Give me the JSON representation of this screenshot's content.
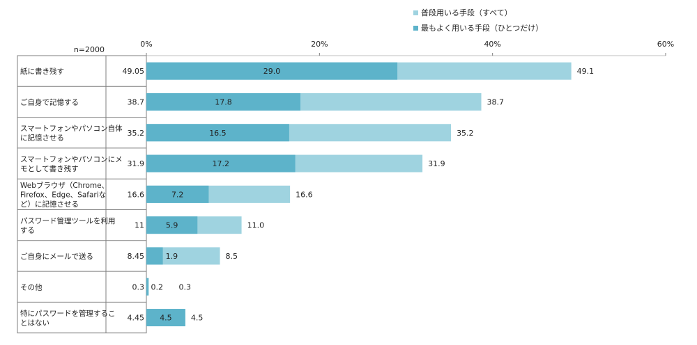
{
  "chart_data": {
    "type": "bar",
    "orientation": "horizontal",
    "sample_label": "n=2000",
    "xlim": [
      0,
      60
    ],
    "xticks": [
      "0%",
      "20%",
      "40%",
      "60%"
    ],
    "grid": true,
    "legend_position": "top-right",
    "colors": {
      "all": "#9fd3e0",
      "most": "#5db3ca"
    },
    "series": [
      {
        "name": "普段用いる手段（すべて）",
        "values": [
          49.1,
          38.7,
          35.2,
          31.9,
          16.6,
          11.0,
          8.5,
          0.3,
          4.5
        ]
      },
      {
        "name": "最もよく用いる手段（ひとつだけ）",
        "values": [
          29.0,
          17.8,
          16.5,
          17.2,
          7.2,
          5.9,
          1.9,
          0.2,
          4.5
        ]
      }
    ],
    "categories": [
      [
        "紙に書き残す"
      ],
      [
        "ご自身で記憶する"
      ],
      [
        "スマートフォンやパソコン自体",
        "に記憶させる"
      ],
      [
        "スマートフォンやパソコンにメ",
        "モとして書き残す"
      ],
      [
        "Webブラウザ（Chrome、",
        "Firefox、Edge、Safariな",
        "ど）に記憶させる"
      ],
      [
        "パスワード管理ツールを利用",
        "する"
      ],
      [
        "ご自身にメールで送る"
      ],
      [
        "その他"
      ],
      [
        "特にパスワードを管理するこ",
        "とはない"
      ]
    ],
    "table_values": [
      "49.05",
      "38.7",
      "35.2",
      "31.9",
      "16.6",
      "11",
      "8.45",
      "0.3",
      "4.45"
    ],
    "all_labels": [
      "49.1",
      "38.7",
      "35.2",
      "31.9",
      "16.6",
      "11.0",
      "8.5",
      "0.3",
      "4.5"
    ],
    "most_labels": [
      "29.0",
      "17.8",
      "16.5",
      "17.2",
      "7.2",
      "5.9",
      "1.9",
      "0.2",
      "4.5"
    ]
  }
}
